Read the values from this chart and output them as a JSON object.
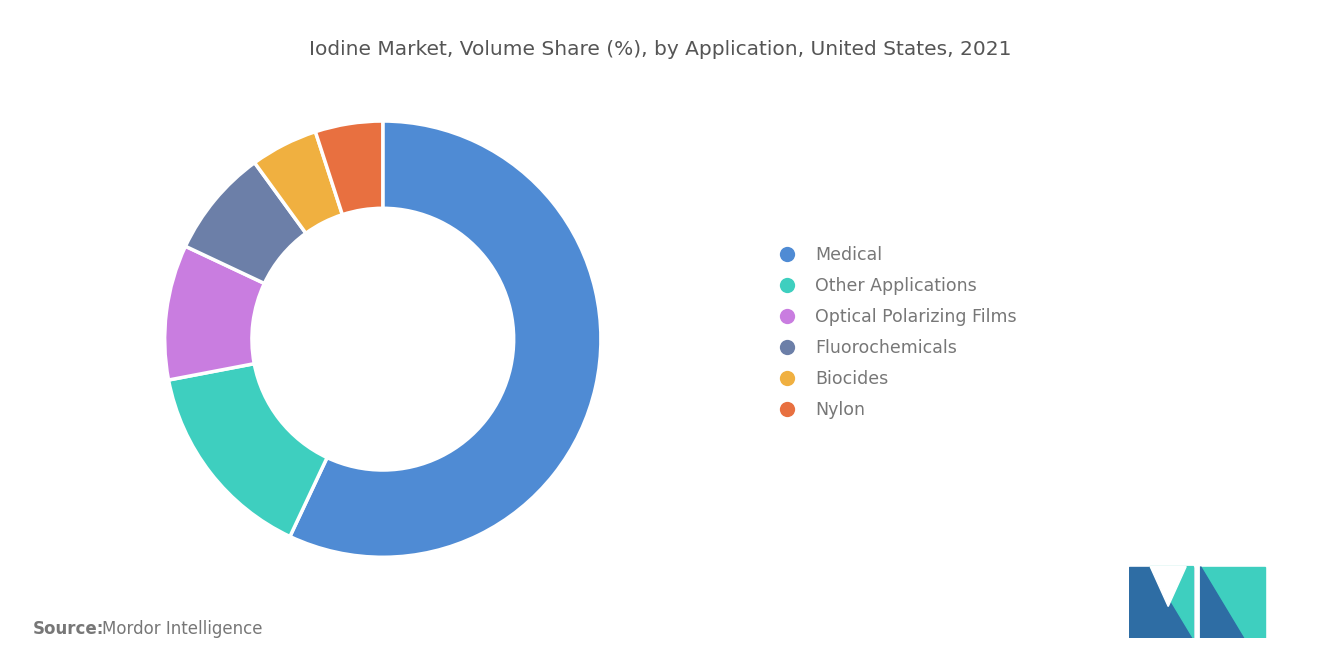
{
  "title": "Iodine Market, Volume Share (%), by Application, United States, 2021",
  "title_fontsize": 14.5,
  "title_color": "#555555",
  "segments": [
    {
      "label": "Medical",
      "value": 57,
      "color": "#4f8bd4"
    },
    {
      "label": "Other Applications",
      "value": 15,
      "color": "#3ecfbf"
    },
    {
      "label": "Optical Polarizing Films",
      "value": 10,
      "color": "#c97de0"
    },
    {
      "label": "Fluorochemicals",
      "value": 8,
      "color": "#6c7fa8"
    },
    {
      "label": "Biocides",
      "value": 5,
      "color": "#f0b040"
    },
    {
      "label": "Nylon",
      "value": 5,
      "color": "#e87040"
    }
  ],
  "legend_fontsize": 12.5,
  "legend_text_color": "#777777",
  "source_bold": "Source:",
  "source_text": "Mordor Intelligence",
  "source_fontsize": 12,
  "source_color": "#777777",
  "background_color": "#ffffff",
  "donut_width": 0.4,
  "start_angle": 90,
  "logo_color_blue": "#2e6da4",
  "logo_color_teal": "#3ecfbf"
}
